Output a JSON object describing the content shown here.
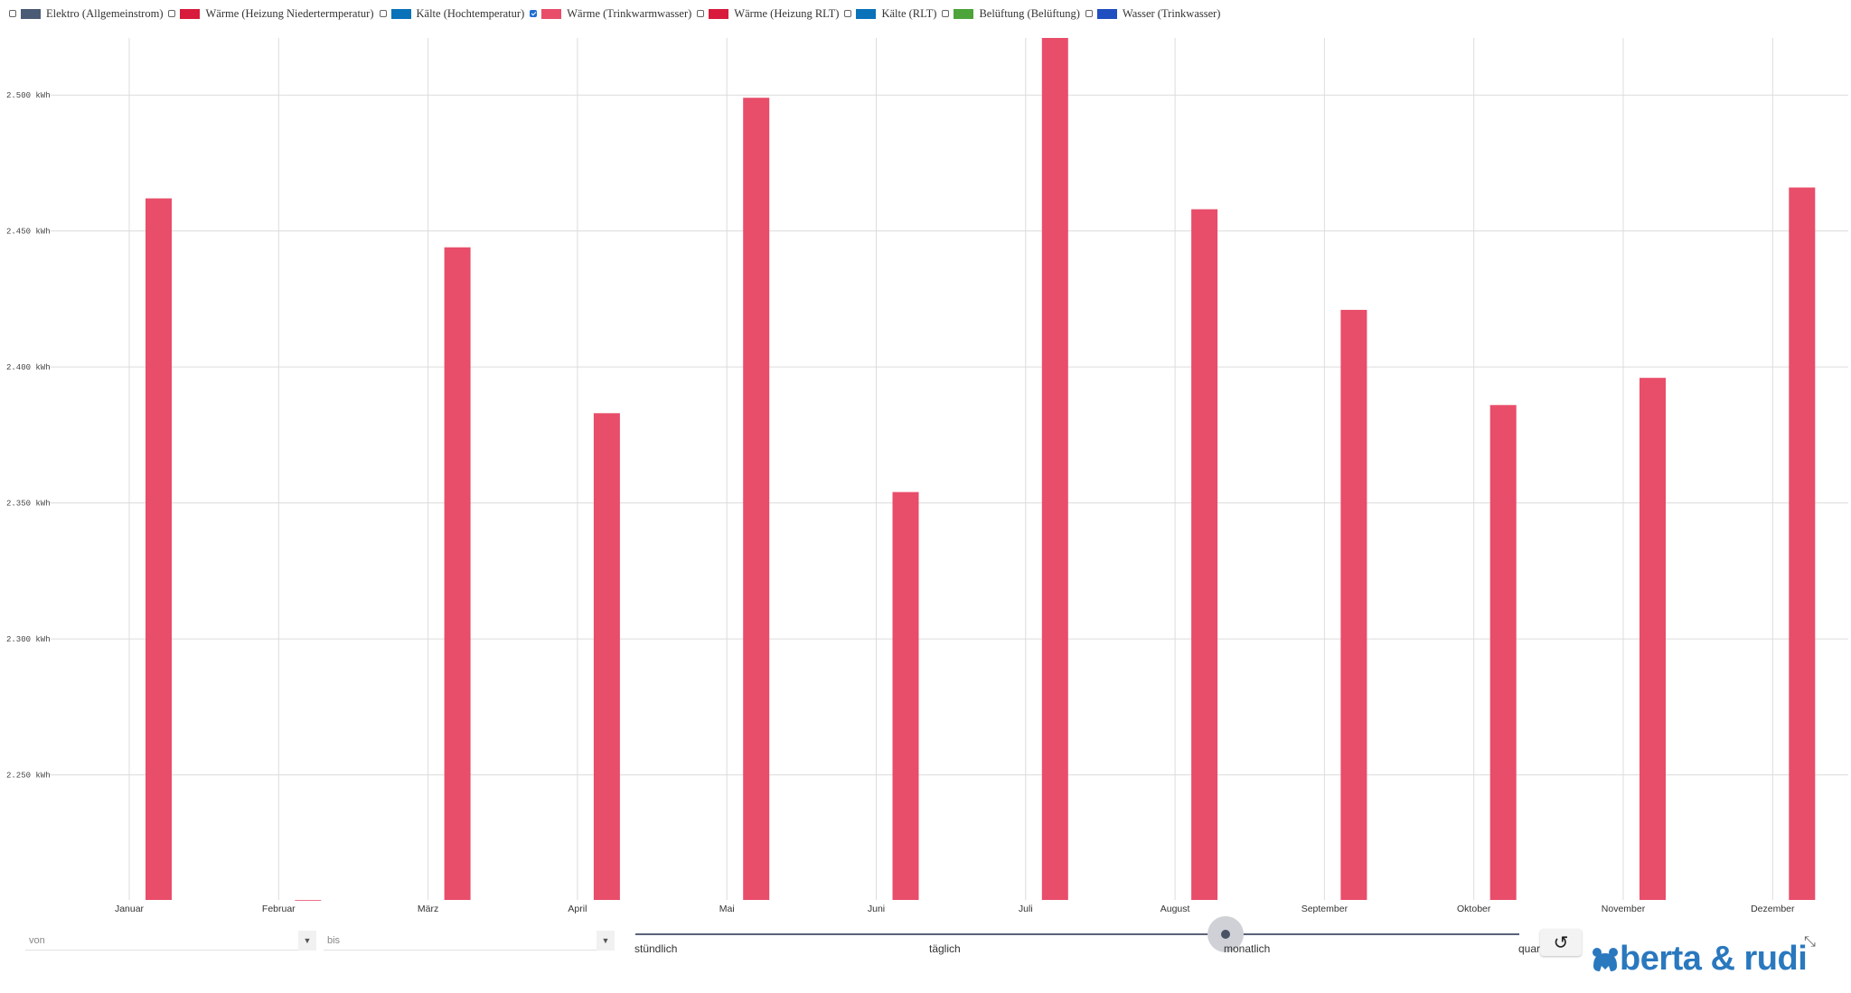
{
  "legend": {
    "items": [
      {
        "label": "Elektro (Allgemeinstrom)",
        "color": "#4b5b76",
        "checked": false
      },
      {
        "label": "Wärme (Heizung Niedertermperatur)",
        "color": "#d81b3c",
        "checked": false
      },
      {
        "label": "Kälte (Hochtemperatur)",
        "color": "#0a72b8",
        "checked": false
      },
      {
        "label": "Wärme (Trinkwarmwasser)",
        "color": "#e84d6a",
        "checked": true
      },
      {
        "label": "Wärme (Heizung RLT)",
        "color": "#d81b3c",
        "checked": false
      },
      {
        "label": "Kälte (RLT)",
        "color": "#0a72b8",
        "checked": false
      },
      {
        "label": "Belüftung (Belüftung)",
        "color": "#4ca43a",
        "checked": false
      },
      {
        "label": "Wasser (Trinkwasser)",
        "color": "#1f4fc0",
        "checked": false
      }
    ]
  },
  "chart_data": {
    "type": "bar",
    "categories": [
      "Januar",
      "Februar",
      "März",
      "April",
      "Mai",
      "Juni",
      "Juli",
      "August",
      "September",
      "Oktober",
      "November",
      "Dezember"
    ],
    "series": [
      {
        "name": "Wärme (Trinkwarmwasser)",
        "color": "#e84d6a",
        "values": [
          2462,
          2204,
          2444,
          2383,
          2499,
          2354,
          2521,
          2458,
          2421,
          2386,
          2396,
          2466
        ]
      }
    ],
    "y_ticks": [
      {
        "value": 2250,
        "label": "2.250 kWh"
      },
      {
        "value": 2300,
        "label": "2.300 kWh"
      },
      {
        "value": 2350,
        "label": "2.350 kWh"
      },
      {
        "value": 2400,
        "label": "2.400 kWh"
      },
      {
        "value": 2450,
        "label": "2.450 kWh"
      },
      {
        "value": 2500,
        "label": "2.500 kWh"
      }
    ],
    "ylim": [
      2204,
      2521
    ],
    "grid": true,
    "xlabel": "",
    "ylabel": ""
  },
  "controls": {
    "from_placeholder": "von",
    "to_placeholder": "bis",
    "dropdown_arrow": "▼",
    "resolution_labels": [
      "stündlich",
      "täglich",
      "monatlich",
      "quar"
    ],
    "resolution_selected": "monatlich",
    "reset_icon": "↺",
    "collapse_icon": "⤡"
  },
  "branding": {
    "logo_text": "berta & rudi",
    "logo_color": "#2a78be"
  }
}
